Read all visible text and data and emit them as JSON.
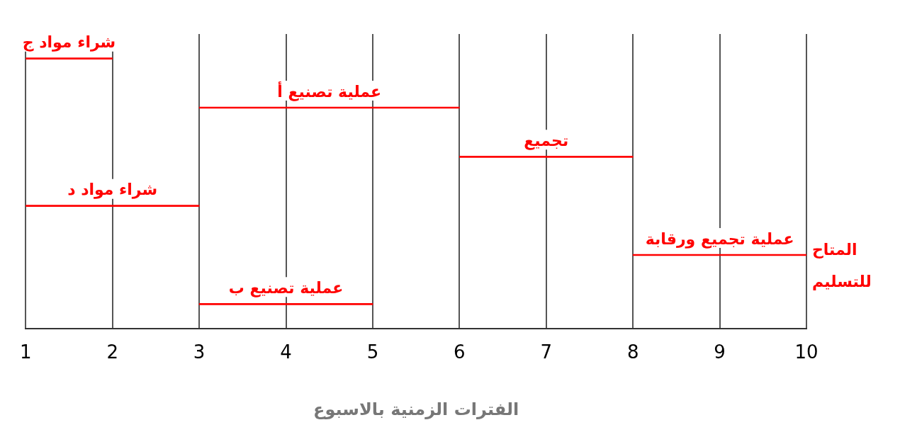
{
  "chart_data": {
    "type": "bar",
    "orientation": "horizontal",
    "categories": [
      "شراء مواد ج",
      "عملية تصنيع أ",
      "تجميع",
      "شراء مواد د",
      "عملية تجميع ورقابة",
      "عملية تصنيع ب"
    ],
    "base": [
      1,
      3,
      6,
      1,
      8,
      3
    ],
    "values": [
      1,
      3,
      2,
      2,
      2,
      2
    ],
    "color": "#ff0000",
    "xlim": [
      1,
      10
    ],
    "xticks": [
      1,
      2,
      3,
      4,
      5,
      6,
      7,
      8,
      9,
      10
    ],
    "xlabel": "الفترات الزمنية بالاسبوع",
    "annotations": [
      "المتاح للتسليم"
    ],
    "grid": "x",
    "legend": false
  }
}
